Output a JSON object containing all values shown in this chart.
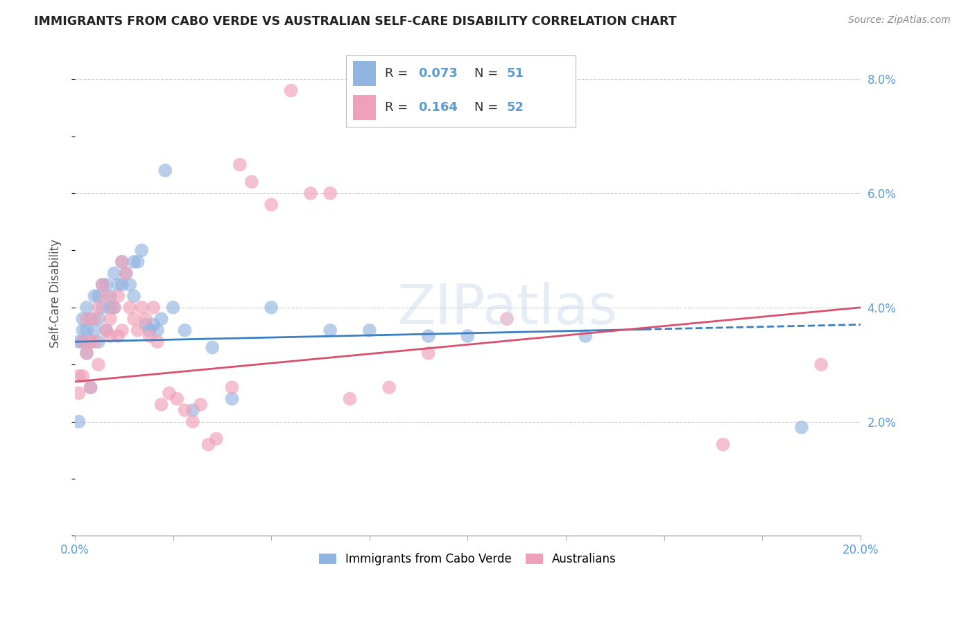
{
  "title": "IMMIGRANTS FROM CABO VERDE VS AUSTRALIAN SELF-CARE DISABILITY CORRELATION CHART",
  "source": "Source: ZipAtlas.com",
  "ylabel": "Self-Care Disability",
  "xlim": [
    0.0,
    0.2
  ],
  "ylim": [
    0.0,
    0.085
  ],
  "xtick_positions": [
    0.0,
    0.025,
    0.05,
    0.075,
    0.1,
    0.125,
    0.15,
    0.175,
    0.2
  ],
  "xtick_labels_shown": {
    "0.0": "0.0%",
    "0.20": "20.0%"
  },
  "yticks": [
    0.0,
    0.02,
    0.04,
    0.06,
    0.08
  ],
  "ytick_labels": [
    "",
    "2.0%",
    "4.0%",
    "6.0%",
    "8.0%"
  ],
  "blue_R": 0.073,
  "blue_N": 51,
  "pink_R": 0.164,
  "pink_N": 52,
  "blue_label": "Immigrants from Cabo Verde",
  "pink_label": "Australians",
  "blue_color": "#92b4e0",
  "pink_color": "#f0a0b8",
  "blue_line_color": "#3a7fc1",
  "pink_line_color": "#d94f6e",
  "axis_color": "#5b9bd5",
  "grid_color": "#cccccc",
  "background_color": "#ffffff",
  "blue_scatter_x": [
    0.001,
    0.001,
    0.002,
    0.002,
    0.002,
    0.003,
    0.003,
    0.003,
    0.004,
    0.004,
    0.004,
    0.005,
    0.005,
    0.006,
    0.006,
    0.006,
    0.007,
    0.007,
    0.008,
    0.008,
    0.009,
    0.009,
    0.01,
    0.01,
    0.011,
    0.012,
    0.012,
    0.013,
    0.014,
    0.015,
    0.015,
    0.016,
    0.017,
    0.018,
    0.019,
    0.02,
    0.021,
    0.022,
    0.023,
    0.025,
    0.028,
    0.03,
    0.035,
    0.04,
    0.05,
    0.065,
    0.075,
    0.09,
    0.1,
    0.13,
    0.185
  ],
  "blue_scatter_y": [
    0.02,
    0.034,
    0.034,
    0.038,
    0.036,
    0.032,
    0.036,
    0.04,
    0.026,
    0.034,
    0.038,
    0.036,
    0.042,
    0.034,
    0.038,
    0.042,
    0.04,
    0.044,
    0.036,
    0.044,
    0.04,
    0.042,
    0.04,
    0.046,
    0.044,
    0.044,
    0.048,
    0.046,
    0.044,
    0.048,
    0.042,
    0.048,
    0.05,
    0.037,
    0.036,
    0.037,
    0.036,
    0.038,
    0.064,
    0.04,
    0.036,
    0.022,
    0.033,
    0.024,
    0.04,
    0.036,
    0.036,
    0.035,
    0.035,
    0.035,
    0.019
  ],
  "pink_scatter_x": [
    0.001,
    0.001,
    0.002,
    0.002,
    0.003,
    0.003,
    0.004,
    0.004,
    0.005,
    0.005,
    0.006,
    0.006,
    0.007,
    0.008,
    0.008,
    0.009,
    0.009,
    0.01,
    0.011,
    0.011,
    0.012,
    0.012,
    0.013,
    0.014,
    0.015,
    0.016,
    0.017,
    0.018,
    0.019,
    0.02,
    0.021,
    0.022,
    0.024,
    0.026,
    0.028,
    0.03,
    0.032,
    0.034,
    0.036,
    0.04,
    0.042,
    0.045,
    0.05,
    0.055,
    0.06,
    0.065,
    0.07,
    0.08,
    0.09,
    0.11,
    0.165,
    0.19
  ],
  "pink_scatter_y": [
    0.025,
    0.028,
    0.028,
    0.034,
    0.032,
    0.038,
    0.026,
    0.034,
    0.034,
    0.038,
    0.03,
    0.04,
    0.044,
    0.036,
    0.042,
    0.038,
    0.035,
    0.04,
    0.042,
    0.035,
    0.036,
    0.048,
    0.046,
    0.04,
    0.038,
    0.036,
    0.04,
    0.038,
    0.035,
    0.04,
    0.034,
    0.023,
    0.025,
    0.024,
    0.022,
    0.02,
    0.023,
    0.016,
    0.017,
    0.026,
    0.065,
    0.062,
    0.058,
    0.078,
    0.06,
    0.06,
    0.024,
    0.026,
    0.032,
    0.038,
    0.016,
    0.03
  ],
  "blue_line_x_start": 0.0,
  "blue_line_x_solid_end": 0.145,
  "blue_line_x_end": 0.2,
  "blue_line_y_start": 0.034,
  "blue_line_y_end": 0.037,
  "pink_line_x_start": 0.0,
  "pink_line_x_end": 0.2,
  "pink_line_y_start": 0.027,
  "pink_line_y_end": 0.04
}
